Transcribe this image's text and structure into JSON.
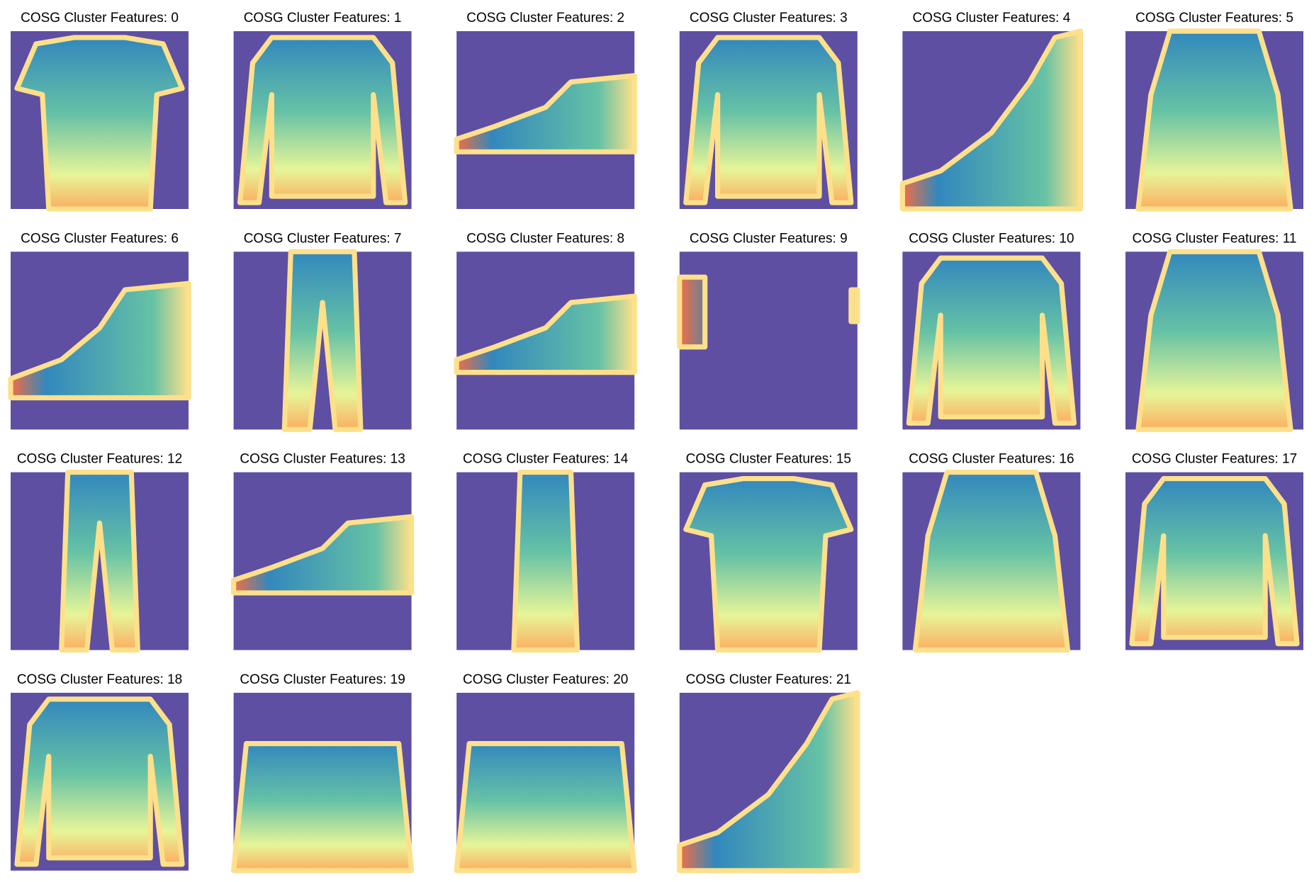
{
  "panels": [
    {
      "title": "COSG Cluster Features: 0"
    },
    {
      "title": "COSG Cluster Features: 1"
    },
    {
      "title": "COSG Cluster Features: 2"
    },
    {
      "title": "COSG Cluster Features: 3"
    },
    {
      "title": "COSG Cluster Features: 4"
    },
    {
      "title": "COSG Cluster Features: 5"
    },
    {
      "title": "COSG Cluster Features: 6"
    },
    {
      "title": "COSG Cluster Features: 7"
    },
    {
      "title": "COSG Cluster Features: 8"
    },
    {
      "title": "COSG Cluster Features: 9"
    },
    {
      "title": "COSG Cluster Features: 10"
    },
    {
      "title": "COSG Cluster Features: 11"
    },
    {
      "title": "COSG Cluster Features: 12"
    },
    {
      "title": "COSG Cluster Features: 13"
    },
    {
      "title": "COSG Cluster Features: 14"
    },
    {
      "title": "COSG Cluster Features: 15"
    },
    {
      "title": "COSG Cluster Features: 16"
    },
    {
      "title": "COSG Cluster Features: 17"
    },
    {
      "title": "COSG Cluster Features: 18"
    },
    {
      "title": "COSG Cluster Features: 19"
    },
    {
      "title": "COSG Cluster Features: 20"
    },
    {
      "title": "COSG Cluster Features: 21"
    }
  ]
}
